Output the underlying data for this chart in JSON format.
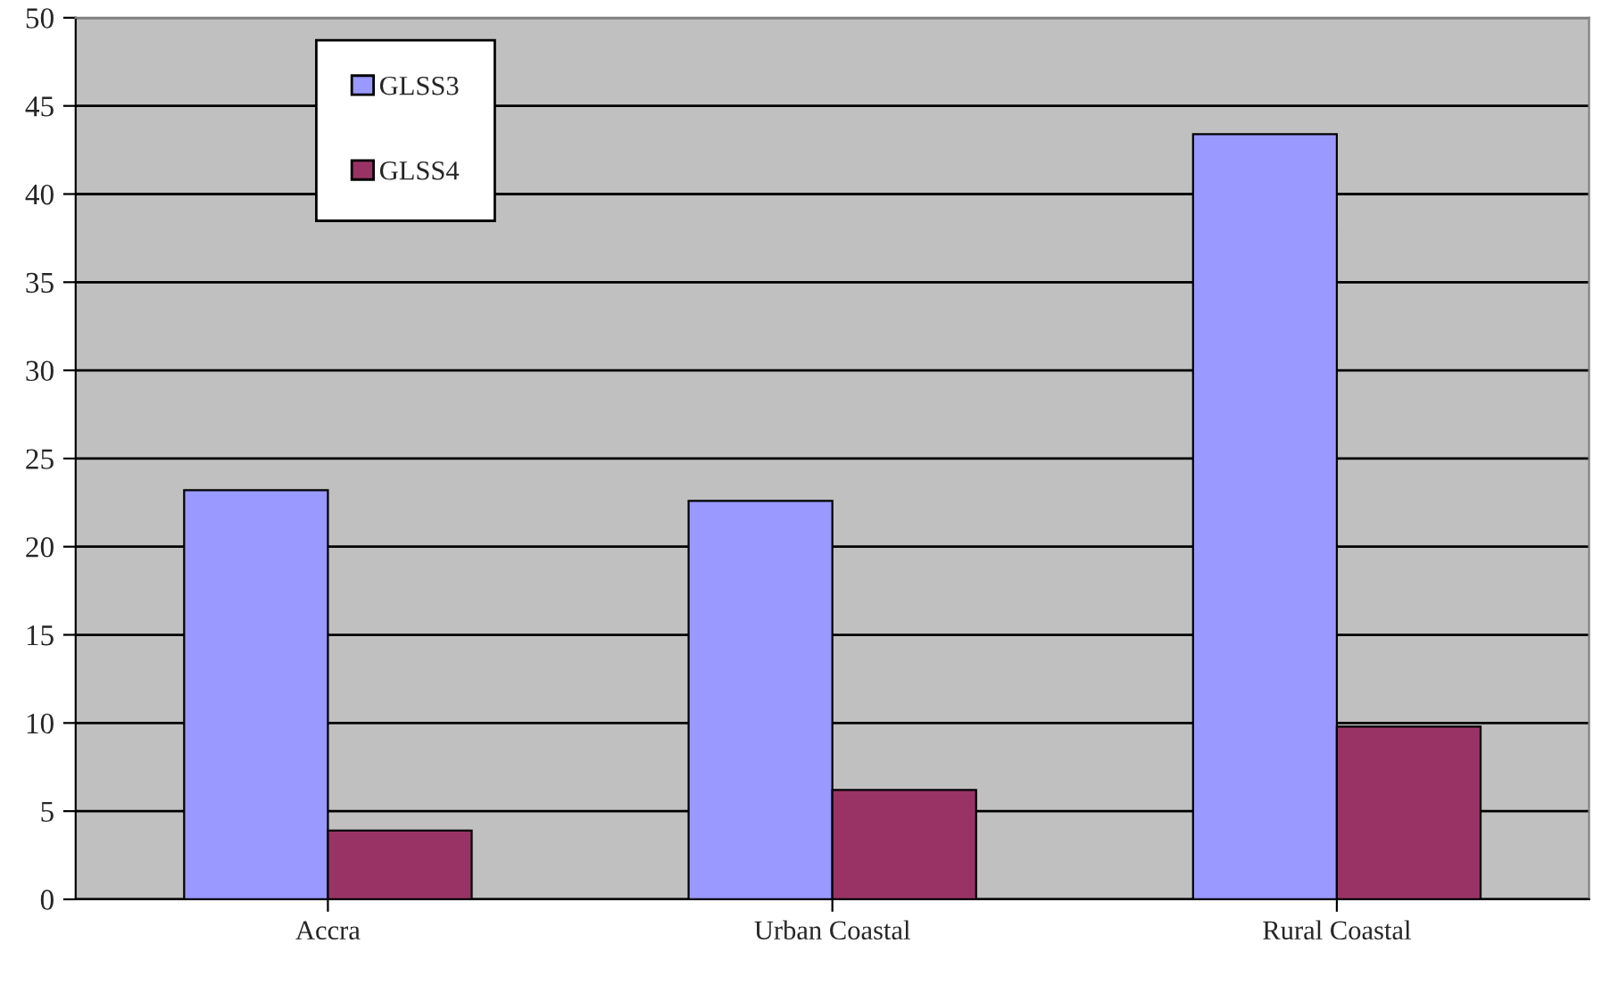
{
  "chart_data": {
    "type": "bar",
    "categories": [
      "Accra",
      "Urban Coastal",
      "Rural Coastal"
    ],
    "series": [
      {
        "name": "GLSS3",
        "color": "#9999ff",
        "values": [
          23.2,
          22.6,
          43.4
        ]
      },
      {
        "name": "GLSS4",
        "color": "#993366",
        "values": [
          3.9,
          6.2,
          9.8
        ]
      }
    ],
    "ylim": [
      0,
      50
    ],
    "yticks": [
      0,
      5,
      10,
      15,
      20,
      25,
      30,
      35,
      40,
      45,
      50
    ],
    "grid": "y",
    "legend": "top left"
  }
}
